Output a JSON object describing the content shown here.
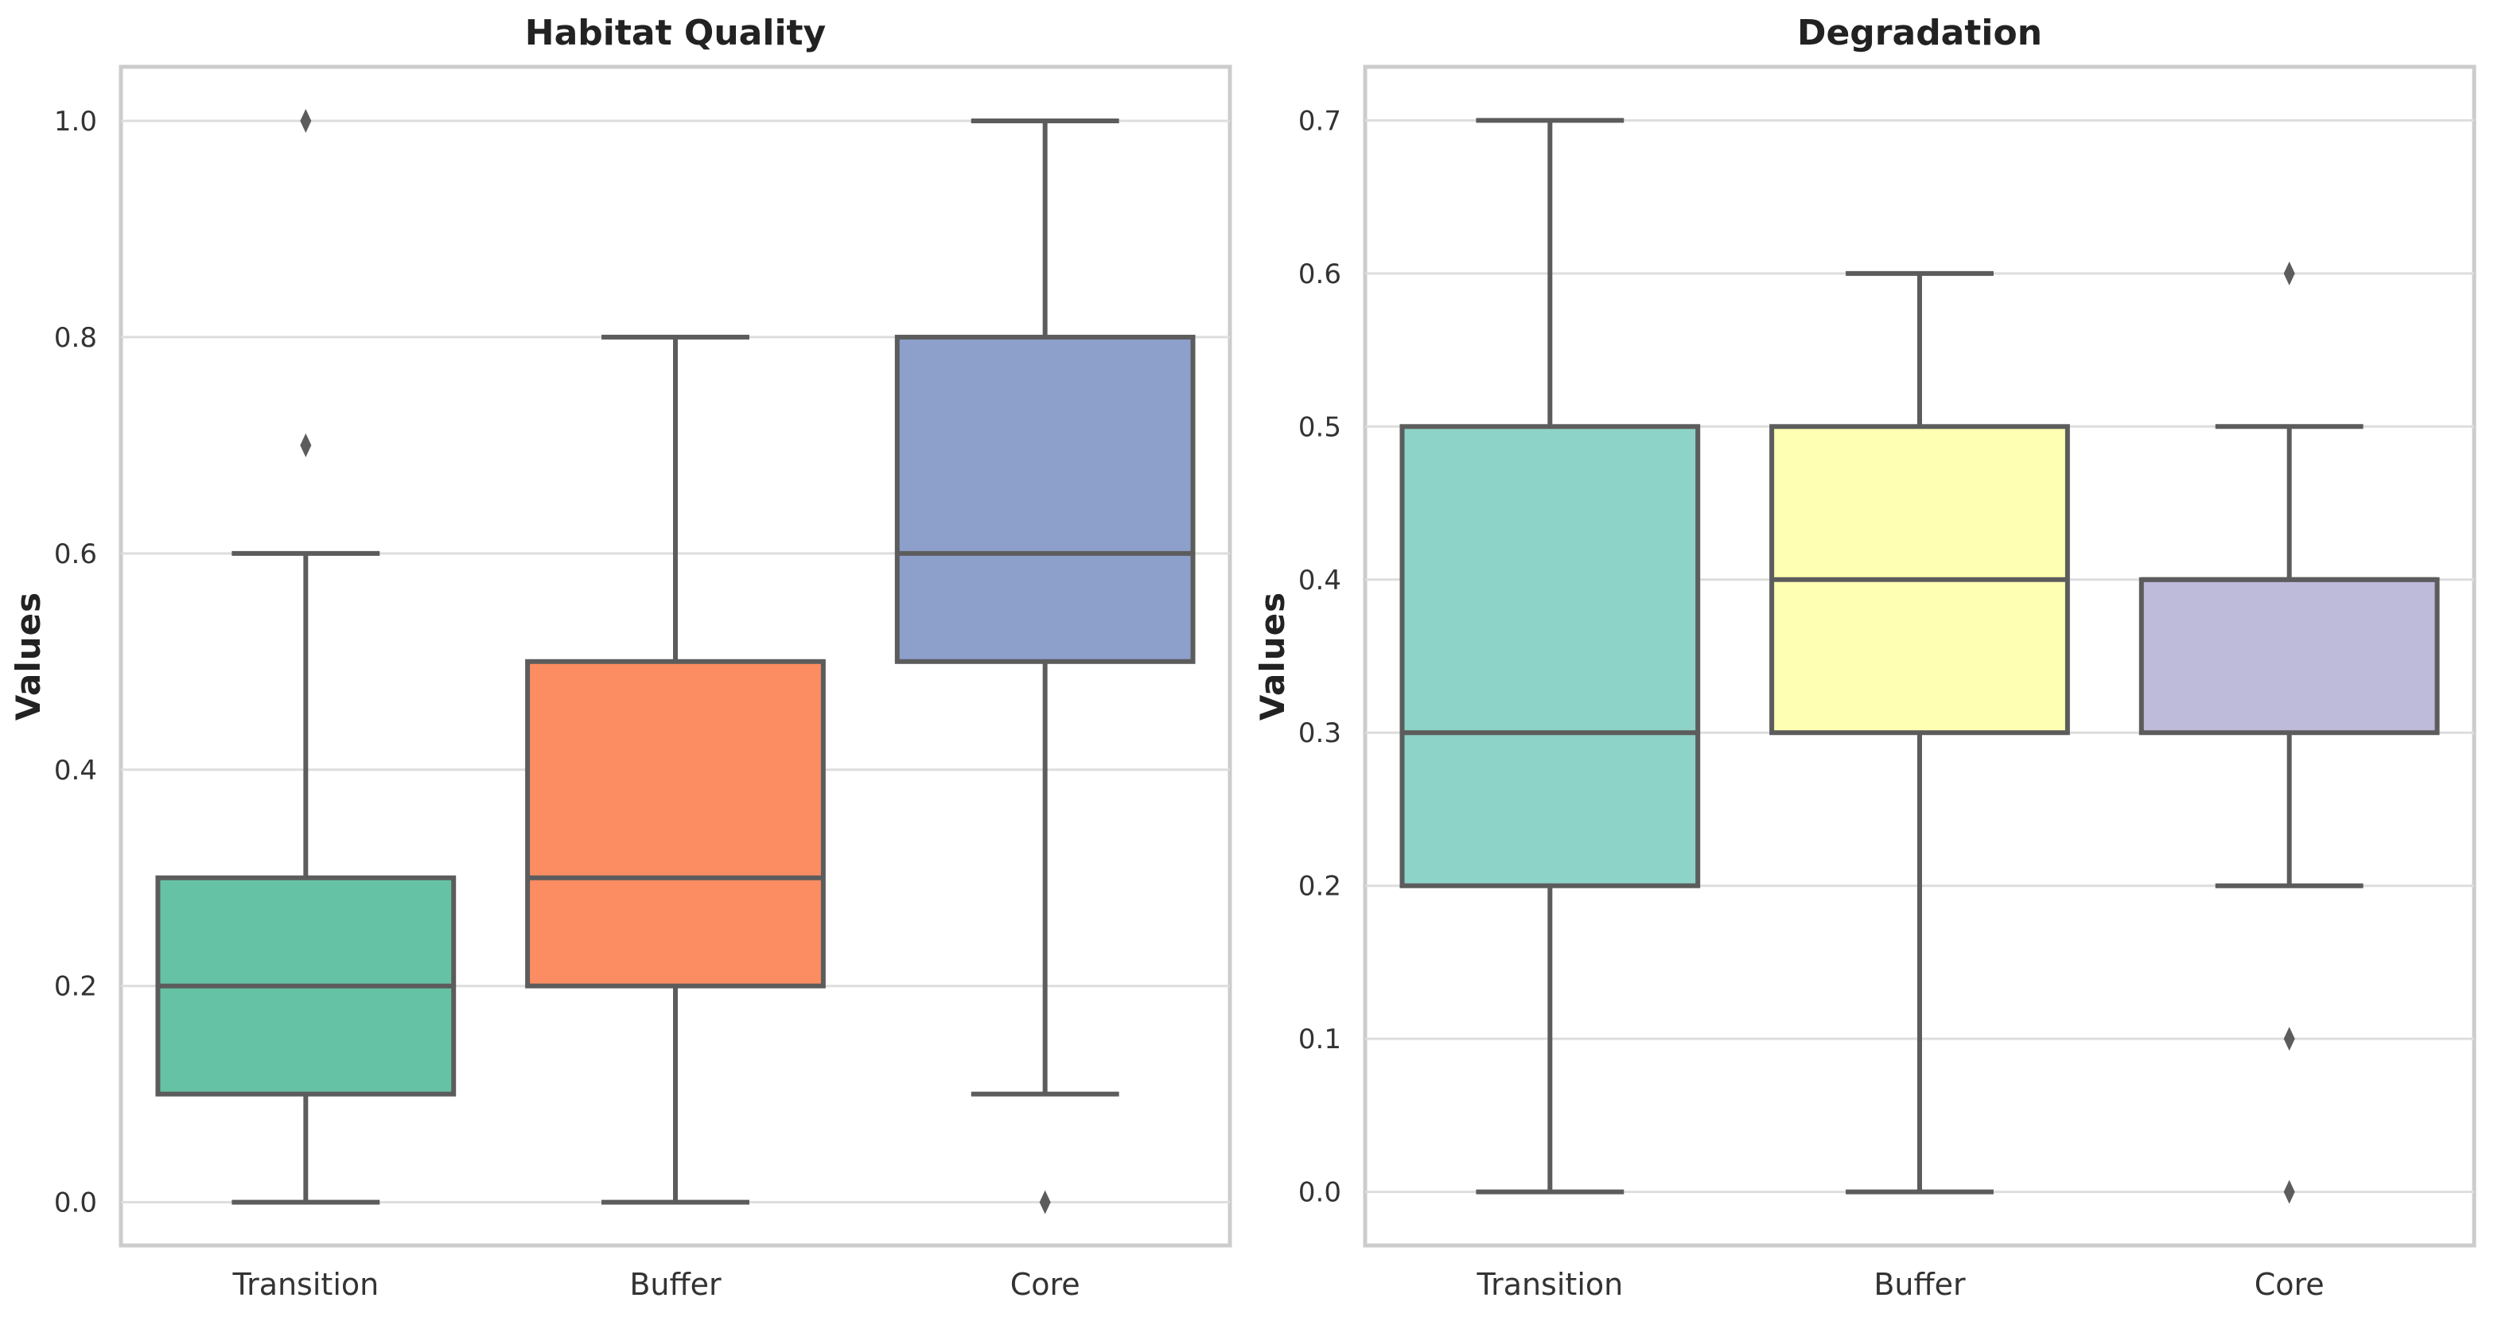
{
  "chart_data": [
    {
      "type": "box",
      "title": "Habitat Quality",
      "xlabel": "",
      "ylabel": "Values",
      "ylim": [
        -0.04,
        1.05
      ],
      "yticks": [
        0.0,
        0.2,
        0.4,
        0.6,
        0.8,
        1.0
      ],
      "ytick_labels": [
        "0.0",
        "0.2",
        "0.4",
        "0.6",
        "0.8",
        "1.0"
      ],
      "categories": [
        "Transition",
        "Buffer",
        "Core"
      ],
      "colors": [
        "#66c2a5",
        "#fc8d62",
        "#8da0cb"
      ],
      "boxes": [
        {
          "whislo": 0.0,
          "q1": 0.1,
          "med": 0.2,
          "q3": 0.3,
          "whishi": 0.6,
          "fliers": [
            0.7,
            1.0
          ]
        },
        {
          "whislo": 0.0,
          "q1": 0.2,
          "med": 0.3,
          "q3": 0.5,
          "whishi": 0.8,
          "fliers": []
        },
        {
          "whislo": 0.1,
          "q1": 0.5,
          "med": 0.6,
          "q3": 0.8,
          "whishi": 1.0,
          "fliers": [
            0.0
          ]
        }
      ],
      "grid": true
    },
    {
      "type": "box",
      "title": "Degradation",
      "xlabel": "",
      "ylabel": "Values",
      "ylim": [
        -0.035,
        0.735
      ],
      "yticks": [
        0.0,
        0.1,
        0.2,
        0.3,
        0.4,
        0.5,
        0.6,
        0.7
      ],
      "ytick_labels": [
        "0.0",
        "0.1",
        "0.2",
        "0.3",
        "0.4",
        "0.5",
        "0.6",
        "0.7"
      ],
      "categories": [
        "Transition",
        "Buffer",
        "Core"
      ],
      "colors": [
        "#8dd3c7",
        "#ffffb3",
        "#bebada"
      ],
      "boxes": [
        {
          "whislo": 0.0,
          "q1": 0.2,
          "med": 0.3,
          "q3": 0.5,
          "whishi": 0.7,
          "fliers": []
        },
        {
          "whislo": 0.0,
          "q1": 0.3,
          "med": 0.4,
          "q3": 0.5,
          "whishi": 0.6,
          "fliers": []
        },
        {
          "whislo": 0.2,
          "q1": 0.3,
          "med": 0.4,
          "q3": 0.4,
          "whishi": 0.5,
          "fliers": [
            0.6,
            0.1,
            0.0
          ]
        }
      ],
      "grid": true
    }
  ]
}
